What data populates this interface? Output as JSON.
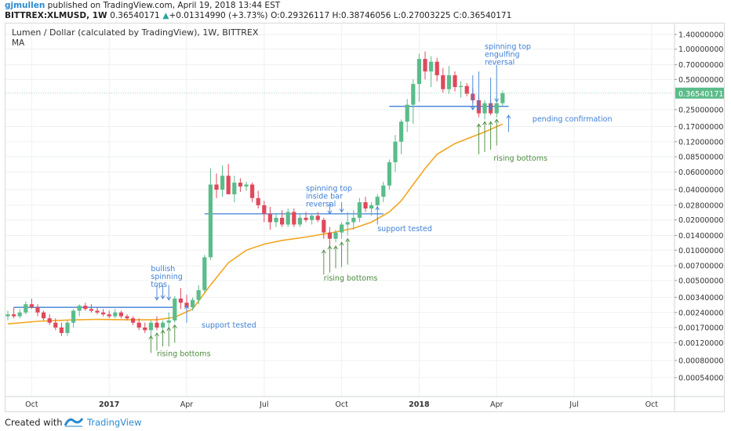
{
  "header": {
    "author": "gjmullen",
    "published_text": " published on TradingView.com, April 19, 2018 13:44 EST",
    "symbol": "BITTREX:XLMUSD, 1W",
    "last": "0.36540171",
    "change": "+0.01314990 (+3.73%)",
    "ohlc_text": "O:0.29326117 H:0.38746056 L:0.27003225 C:0.36540171",
    "arrow": "▲"
  },
  "footer": {
    "made_with": "Created with",
    "brand": "TradingView"
  },
  "colors": {
    "up": "#26a69a",
    "up_fill": "#5bbc8a",
    "down": "#e0485b",
    "ma": "#f2a621",
    "line": "#3f7fd6",
    "annot_blue": "#3f7fd6",
    "annot_green": "#4b8b3b",
    "grid": "#eef0f2",
    "price_tag": "#5bbc8a"
  },
  "chart_data": {
    "type": "candlestick",
    "title": "Lumen / Dollar (calculated by TradingView), 1W, BITTREX",
    "indicator_label": "MA",
    "y_scale": "log",
    "y_range": [
      0.00035,
      1.8
    ],
    "y_ticks": [
      "1.40000000",
      "1.00000000",
      "0.70000000",
      "0.50000000",
      "0.25000000",
      "0.17000000",
      "0.12000000",
      "0.08500000",
      "0.06000000",
      "0.04000000",
      "0.02800000",
      "0.02000000",
      "0.01400000",
      "0.01000000",
      "0.00700000",
      "0.00500000",
      "0.00340000",
      "0.00240000",
      "0.00170000",
      "0.00120000",
      "0.00080000",
      "0.00054000"
    ],
    "x_labels": [
      "Oct",
      "2017",
      "Apr",
      "Jul",
      "Oct",
      "2018",
      "Apr",
      "Jul",
      "Oct"
    ],
    "x_label_weeks": [
      4,
      17,
      30,
      43,
      56,
      69,
      82,
      95,
      108
    ],
    "last_price_label": "0.36540171",
    "last_price": 0.3654,
    "candles": [
      {
        "o": 0.0022,
        "h": 0.0025,
        "l": 0.002,
        "c": 0.0023
      },
      {
        "o": 0.0023,
        "h": 0.0027,
        "l": 0.0021,
        "c": 0.0022
      },
      {
        "o": 0.0022,
        "h": 0.0026,
        "l": 0.0021,
        "c": 0.0024
      },
      {
        "o": 0.0024,
        "h": 0.0031,
        "l": 0.0023,
        "c": 0.0029
      },
      {
        "o": 0.0029,
        "h": 0.0033,
        "l": 0.0026,
        "c": 0.0027
      },
      {
        "o": 0.0027,
        "h": 0.0029,
        "l": 0.0022,
        "c": 0.0024
      },
      {
        "o": 0.0024,
        "h": 0.0025,
        "l": 0.002,
        "c": 0.0021
      },
      {
        "o": 0.0021,
        "h": 0.0023,
        "l": 0.0018,
        "c": 0.0019
      },
      {
        "o": 0.0019,
        "h": 0.0021,
        "l": 0.0016,
        "c": 0.0017
      },
      {
        "o": 0.0017,
        "h": 0.0019,
        "l": 0.0014,
        "c": 0.0015
      },
      {
        "o": 0.0015,
        "h": 0.002,
        "l": 0.0014,
        "c": 0.0019
      },
      {
        "o": 0.0019,
        "h": 0.0026,
        "l": 0.0017,
        "c": 0.0025
      },
      {
        "o": 0.0025,
        "h": 0.0029,
        "l": 0.0022,
        "c": 0.0028
      },
      {
        "o": 0.0028,
        "h": 0.003,
        "l": 0.0025,
        "c": 0.0026
      },
      {
        "o": 0.0026,
        "h": 0.0029,
        "l": 0.0024,
        "c": 0.0025
      },
      {
        "o": 0.0025,
        "h": 0.0027,
        "l": 0.0023,
        "c": 0.0024
      },
      {
        "o": 0.0024,
        "h": 0.0026,
        "l": 0.0022,
        "c": 0.0023
      },
      {
        "o": 0.0023,
        "h": 0.0025,
        "l": 0.0021,
        "c": 0.0022
      },
      {
        "o": 0.0022,
        "h": 0.0026,
        "l": 0.0021,
        "c": 0.0024
      },
      {
        "o": 0.0024,
        "h": 0.0025,
        "l": 0.0021,
        "c": 0.0022
      },
      {
        "o": 0.0022,
        "h": 0.0023,
        "l": 0.002,
        "c": 0.0021
      },
      {
        "o": 0.0021,
        "h": 0.0022,
        "l": 0.0018,
        "c": 0.0019
      },
      {
        "o": 0.0019,
        "h": 0.0021,
        "l": 0.0016,
        "c": 0.0017
      },
      {
        "o": 0.0017,
        "h": 0.0019,
        "l": 0.0015,
        "c": 0.0016
      },
      {
        "o": 0.0016,
        "h": 0.002,
        "l": 0.0014,
        "c": 0.0019
      },
      {
        "o": 0.0019,
        "h": 0.0022,
        "l": 0.0016,
        "c": 0.0017
      },
      {
        "o": 0.0017,
        "h": 0.002,
        "l": 0.0015,
        "c": 0.0019
      },
      {
        "o": 0.0019,
        "h": 0.0024,
        "l": 0.0017,
        "c": 0.002
      },
      {
        "o": 0.002,
        "h": 0.0035,
        "l": 0.0019,
        "c": 0.0033
      },
      {
        "o": 0.0033,
        "h": 0.0042,
        "l": 0.0026,
        "c": 0.003
      },
      {
        "o": 0.003,
        "h": 0.0036,
        "l": 0.0025,
        "c": 0.0027
      },
      {
        "o": 0.0027,
        "h": 0.0034,
        "l": 0.0025,
        "c": 0.0032
      },
      {
        "o": 0.0032,
        "h": 0.0045,
        "l": 0.0029,
        "c": 0.004
      },
      {
        "o": 0.004,
        "h": 0.009,
        "l": 0.0038,
        "c": 0.0085
      },
      {
        "o": 0.0085,
        "h": 0.065,
        "l": 0.008,
        "c": 0.045
      },
      {
        "o": 0.045,
        "h": 0.058,
        "l": 0.033,
        "c": 0.04
      },
      {
        "o": 0.04,
        "h": 0.07,
        "l": 0.034,
        "c": 0.055
      },
      {
        "o": 0.055,
        "h": 0.072,
        "l": 0.041,
        "c": 0.036
      },
      {
        "o": 0.036,
        "h": 0.055,
        "l": 0.03,
        "c": 0.047
      },
      {
        "o": 0.047,
        "h": 0.052,
        "l": 0.038,
        "c": 0.043
      },
      {
        "o": 0.043,
        "h": 0.048,
        "l": 0.039,
        "c": 0.045
      },
      {
        "o": 0.045,
        "h": 0.047,
        "l": 0.03,
        "c": 0.033
      },
      {
        "o": 0.033,
        "h": 0.039,
        "l": 0.026,
        "c": 0.028
      },
      {
        "o": 0.028,
        "h": 0.031,
        "l": 0.019,
        "c": 0.023
      },
      {
        "o": 0.023,
        "h": 0.027,
        "l": 0.016,
        "c": 0.019
      },
      {
        "o": 0.019,
        "h": 0.023,
        "l": 0.017,
        "c": 0.021
      },
      {
        "o": 0.021,
        "h": 0.025,
        "l": 0.017,
        "c": 0.018
      },
      {
        "o": 0.018,
        "h": 0.026,
        "l": 0.017,
        "c": 0.024
      },
      {
        "o": 0.024,
        "h": 0.026,
        "l": 0.017,
        "c": 0.018
      },
      {
        "o": 0.018,
        "h": 0.023,
        "l": 0.017,
        "c": 0.021
      },
      {
        "o": 0.021,
        "h": 0.024,
        "l": 0.019,
        "c": 0.02
      },
      {
        "o": 0.02,
        "h": 0.023,
        "l": 0.018,
        "c": 0.022
      },
      {
        "o": 0.022,
        "h": 0.024,
        "l": 0.019,
        "c": 0.02
      },
      {
        "o": 0.02,
        "h": 0.021,
        "l": 0.013,
        "c": 0.015
      },
      {
        "o": 0.015,
        "h": 0.017,
        "l": 0.011,
        "c": 0.013
      },
      {
        "o": 0.013,
        "h": 0.016,
        "l": 0.012,
        "c": 0.015
      },
      {
        "o": 0.015,
        "h": 0.019,
        "l": 0.013,
        "c": 0.018
      },
      {
        "o": 0.018,
        "h": 0.024,
        "l": 0.014,
        "c": 0.019
      },
      {
        "o": 0.019,
        "h": 0.025,
        "l": 0.016,
        "c": 0.021
      },
      {
        "o": 0.021,
        "h": 0.033,
        "l": 0.019,
        "c": 0.03
      },
      {
        "o": 0.03,
        "h": 0.034,
        "l": 0.024,
        "c": 0.026
      },
      {
        "o": 0.026,
        "h": 0.03,
        "l": 0.022,
        "c": 0.028
      },
      {
        "o": 0.028,
        "h": 0.036,
        "l": 0.025,
        "c": 0.034
      },
      {
        "o": 0.034,
        "h": 0.048,
        "l": 0.03,
        "c": 0.044
      },
      {
        "o": 0.044,
        "h": 0.08,
        "l": 0.04,
        "c": 0.075
      },
      {
        "o": 0.075,
        "h": 0.14,
        "l": 0.06,
        "c": 0.12
      },
      {
        "o": 0.12,
        "h": 0.2,
        "l": 0.09,
        "c": 0.19
      },
      {
        "o": 0.19,
        "h": 0.32,
        "l": 0.15,
        "c": 0.28
      },
      {
        "o": 0.28,
        "h": 0.5,
        "l": 0.18,
        "c": 0.45
      },
      {
        "o": 0.45,
        "h": 0.9,
        "l": 0.3,
        "c": 0.8
      },
      {
        "o": 0.8,
        "h": 0.95,
        "l": 0.5,
        "c": 0.6
      },
      {
        "o": 0.6,
        "h": 0.85,
        "l": 0.42,
        "c": 0.75
      },
      {
        "o": 0.75,
        "h": 0.82,
        "l": 0.48,
        "c": 0.55
      },
      {
        "o": 0.55,
        "h": 0.65,
        "l": 0.37,
        "c": 0.4
      },
      {
        "o": 0.4,
        "h": 0.68,
        "l": 0.36,
        "c": 0.55
      },
      {
        "o": 0.55,
        "h": 0.6,
        "l": 0.38,
        "c": 0.42
      },
      {
        "o": 0.42,
        "h": 0.48,
        "l": 0.33,
        "c": 0.43
      },
      {
        "o": 0.43,
        "h": 0.46,
        "l": 0.34,
        "c": 0.36
      },
      {
        "o": 0.36,
        "h": 0.41,
        "l": 0.29,
        "c": 0.31
      },
      {
        "o": 0.31,
        "h": 0.34,
        "l": 0.21,
        "c": 0.23
      },
      {
        "o": 0.23,
        "h": 0.31,
        "l": 0.2,
        "c": 0.29
      },
      {
        "o": 0.29,
        "h": 0.31,
        "l": 0.22,
        "c": 0.23
      },
      {
        "o": 0.23,
        "h": 0.33,
        "l": 0.21,
        "c": 0.29
      },
      {
        "o": 0.29,
        "h": 0.3875,
        "l": 0.27,
        "c": 0.3654
      }
    ],
    "ma": [
      {
        "w": 0,
        "v": 0.00185
      },
      {
        "w": 5,
        "v": 0.00196
      },
      {
        "w": 10,
        "v": 0.00202
      },
      {
        "w": 15,
        "v": 0.00205
      },
      {
        "w": 20,
        "v": 0.00203
      },
      {
        "w": 25,
        "v": 0.00203
      },
      {
        "w": 28,
        "v": 0.00215
      },
      {
        "w": 31,
        "v": 0.0026
      },
      {
        "w": 34,
        "v": 0.0045
      },
      {
        "w": 37,
        "v": 0.0075
      },
      {
        "w": 40,
        "v": 0.01
      },
      {
        "w": 43,
        "v": 0.0115
      },
      {
        "w": 46,
        "v": 0.0125
      },
      {
        "w": 50,
        "v": 0.0135
      },
      {
        "w": 54,
        "v": 0.0148
      },
      {
        "w": 58,
        "v": 0.0165
      },
      {
        "w": 61,
        "v": 0.019
      },
      {
        "w": 64,
        "v": 0.024
      },
      {
        "w": 66,
        "v": 0.031
      },
      {
        "w": 68,
        "v": 0.045
      },
      {
        "w": 70,
        "v": 0.065
      },
      {
        "w": 72,
        "v": 0.09
      },
      {
        "w": 75,
        "v": 0.115
      },
      {
        "w": 78,
        "v": 0.135
      },
      {
        "w": 80,
        "v": 0.15
      },
      {
        "w": 83,
        "v": 0.18
      }
    ],
    "hlines": [
      {
        "w0": 1,
        "w1": 28,
        "v": 0.0027
      },
      {
        "w0": 33,
        "w1": 63,
        "v": 0.023
      },
      {
        "w0": 64,
        "w1": 84,
        "v": 0.27
      }
    ],
    "annotations": [
      {
        "name": "annot-bullish",
        "text": [
          "bullish",
          "spinning",
          "tops"
        ],
        "color": "blue",
        "w": 24,
        "v": 0.0062
      },
      {
        "name": "annot-support-1",
        "text": [
          "support tested"
        ],
        "color": "blue",
        "w": 32.5,
        "v": 0.0017
      },
      {
        "name": "annot-rising-1",
        "text": [
          "rising bottoms"
        ],
        "color": "green",
        "w": 25,
        "v": 0.00088
      },
      {
        "name": "annot-spinning-inside",
        "text": [
          "spinning top",
          "inside bar",
          "reversal"
        ],
        "color": "blue",
        "w": 50,
        "v": 0.039
      },
      {
        "name": "annot-support-2",
        "text": [
          "support tested"
        ],
        "color": "blue",
        "w": 62,
        "v": 0.0155
      },
      {
        "name": "annot-rising-2",
        "text": [
          "rising bottoms"
        ],
        "color": "green",
        "w": 53,
        "v": 0.005
      },
      {
        "name": "annot-spinning-engulf",
        "text": [
          "spinning top",
          "engulfing",
          "reversal"
        ],
        "color": "blue",
        "w": 80,
        "v": 1.0
      },
      {
        "name": "annot-pending",
        "text": [
          "pending confirmation"
        ],
        "color": "blue",
        "w": 88,
        "v": 0.19
      },
      {
        "name": "annot-rising-3",
        "text": [
          "rising bottoms"
        ],
        "color": "green",
        "w": 81.5,
        "v": 0.078
      }
    ],
    "arrows": [
      {
        "w": 25,
        "v0": 0.0032,
        "v1": 0.0045,
        "dir": "down",
        "color": "blue"
      },
      {
        "w": 26,
        "v0": 0.0033,
        "v1": 0.0045,
        "dir": "down",
        "color": "blue"
      },
      {
        "w": 27,
        "v0": 0.0032,
        "v1": 0.0045,
        "dir": "down",
        "color": "blue"
      },
      {
        "w": 30,
        "v0": 0.0028,
        "v1": 0.0019,
        "dir": "up",
        "color": "blue"
      },
      {
        "w": 24,
        "v0": 0.00095,
        "v1": 0.0014,
        "dir": "up",
        "color": "green"
      },
      {
        "w": 25,
        "v0": 0.001,
        "v1": 0.0015,
        "dir": "up",
        "color": "green"
      },
      {
        "w": 26,
        "v0": 0.0011,
        "v1": 0.0016,
        "dir": "up",
        "color": "green"
      },
      {
        "w": 27,
        "v0": 0.0011,
        "v1": 0.0017,
        "dir": "up",
        "color": "green"
      },
      {
        "w": 28,
        "v0": 0.0012,
        "v1": 0.0018,
        "dir": "up",
        "color": "green"
      },
      {
        "w": 54,
        "v0": 0.023,
        "v1": 0.03,
        "dir": "down",
        "color": "blue"
      },
      {
        "w": 56,
        "v0": 0.024,
        "v1": 0.03,
        "dir": "down",
        "color": "blue"
      },
      {
        "w": 62,
        "v0": 0.027,
        "v1": 0.018,
        "dir": "up",
        "color": "blue"
      },
      {
        "w": 53,
        "v0": 0.0057,
        "v1": 0.01,
        "dir": "up",
        "color": "green"
      },
      {
        "w": 54,
        "v0": 0.006,
        "v1": 0.011,
        "dir": "up",
        "color": "green"
      },
      {
        "w": 55,
        "v0": 0.0066,
        "v1": 0.011,
        "dir": "up",
        "color": "green"
      },
      {
        "w": 56,
        "v0": 0.0068,
        "v1": 0.012,
        "dir": "up",
        "color": "green"
      },
      {
        "w": 57,
        "v0": 0.0072,
        "v1": 0.013,
        "dir": "up",
        "color": "green"
      },
      {
        "w": 78,
        "v0": 0.25,
        "v1": 0.55,
        "dir": "down",
        "color": "blue"
      },
      {
        "w": 79,
        "v0": 0.25,
        "v1": 0.6,
        "dir": "down",
        "color": "blue"
      },
      {
        "w": 81,
        "v0": 0.25,
        "v1": 0.52,
        "dir": "down",
        "color": "blue"
      },
      {
        "w": 82,
        "v0": 0.3,
        "v1": 0.7,
        "dir": "down",
        "color": "blue"
      },
      {
        "w": 84,
        "v0": 0.15,
        "v1": 0.22,
        "dir": "up",
        "color": "blue"
      },
      {
        "w": 79,
        "v0": 0.09,
        "v1": 0.18,
        "dir": "up",
        "color": "green"
      },
      {
        "w": 80,
        "v0": 0.095,
        "v1": 0.19,
        "dir": "up",
        "color": "green"
      },
      {
        "w": 81,
        "v0": 0.1,
        "v1": 0.19,
        "dir": "up",
        "color": "green"
      },
      {
        "w": 82,
        "v0": 0.11,
        "v1": 0.2,
        "dir": "up",
        "color": "green"
      }
    ]
  }
}
